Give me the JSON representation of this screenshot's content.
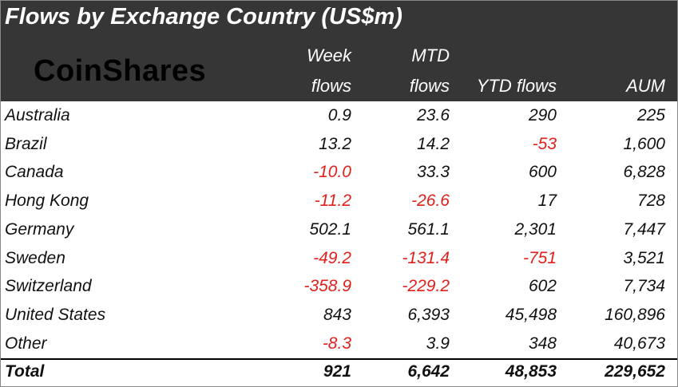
{
  "header": {
    "title": "Flows by Exchange Country (US$m)",
    "logo": "CoinShares"
  },
  "table": {
    "columns": [
      [
        "Week",
        "flows"
      ],
      [
        "MTD",
        "flows"
      ],
      [
        "YTD flows"
      ],
      [
        "AUM"
      ]
    ],
    "rows": [
      [
        "Australia",
        "0.9",
        "23.6",
        "290",
        "225"
      ],
      [
        "Brazil",
        "13.2",
        "14.2",
        "-53",
        "1,600"
      ],
      [
        "Canada",
        "-10.0",
        "33.3",
        "600",
        "6,828"
      ],
      [
        "Hong Kong",
        "-11.2",
        "-26.6",
        "17",
        "728"
      ],
      [
        "Germany",
        "502.1",
        "561.1",
        "2,301",
        "7,447"
      ],
      [
        "Sweden",
        "-49.2",
        "-131.4",
        "-751",
        "3,521"
      ],
      [
        "Switzerland",
        "-358.9",
        "-229.2",
        "602",
        "7,734"
      ],
      [
        "United States",
        "843",
        "6,393",
        "45,498",
        "160,896"
      ],
      [
        "Other",
        "-8.3",
        "3.9",
        "348",
        "40,673"
      ]
    ],
    "total": [
      "Total",
      "921",
      "6,642",
      "48,853",
      "229,652"
    ]
  }
}
